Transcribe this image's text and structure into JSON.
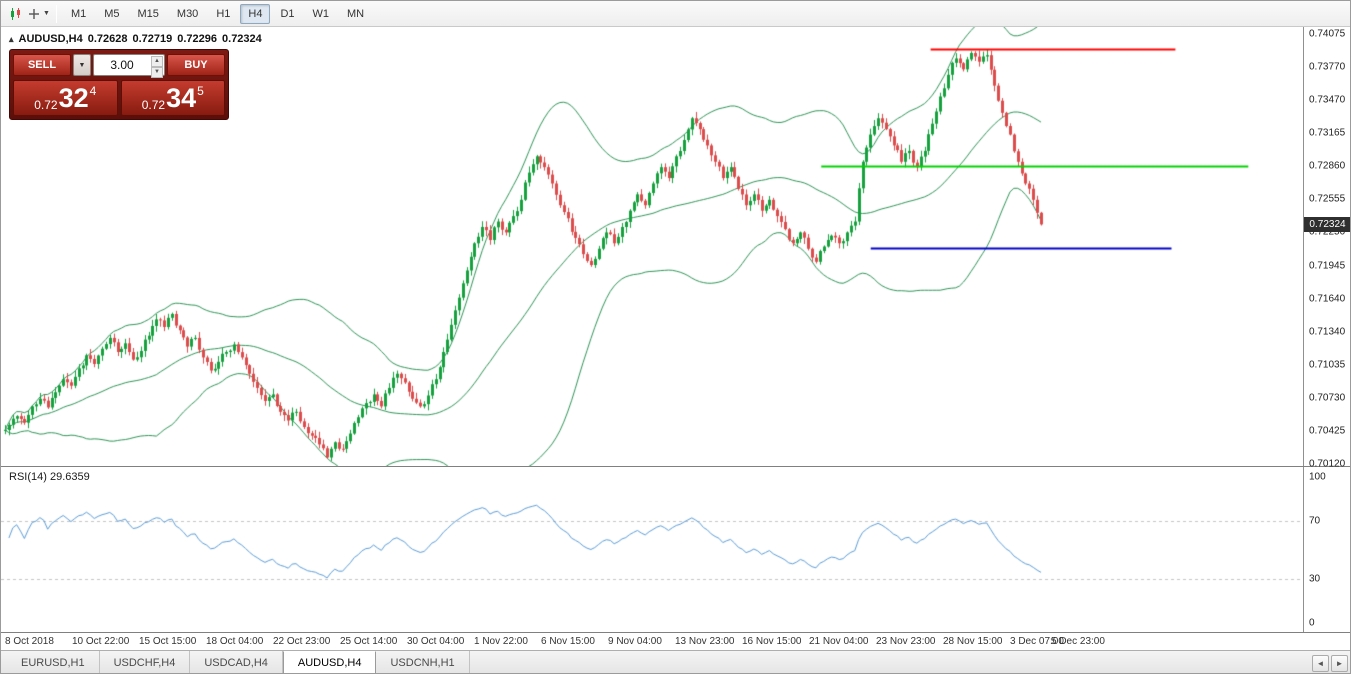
{
  "toolbar": {
    "timeframes": [
      "M1",
      "M5",
      "M15",
      "M30",
      "H1",
      "H4",
      "D1",
      "W1",
      "MN"
    ],
    "active_timeframe": "H4"
  },
  "chart_header": {
    "symbol": "AUDUSD,H4",
    "open": "0.72628",
    "high": "0.72719",
    "low": "0.72296",
    "close": "0.72324"
  },
  "trade_panel": {
    "sell_label": "SELL",
    "buy_label": "BUY",
    "lot_size": "3.00",
    "sell_price": {
      "big_figure": "0.72",
      "pips": "32",
      "pipette": "4"
    },
    "buy_price": {
      "big_figure": "0.72",
      "pips": "34",
      "pipette": "5"
    }
  },
  "chart_data": {
    "type": "candlestick",
    "symbol": "AUDUSD",
    "timeframe": "H4",
    "price_min": 0.7012,
    "price_max": 0.74075,
    "current_price": "0.72324",
    "y_ticks": [
      "0.74075",
      "0.73770",
      "0.73470",
      "0.73165",
      "0.72860",
      "0.72555",
      "0.72250",
      "0.71945",
      "0.71640",
      "0.71340",
      "0.71035",
      "0.70730",
      "0.70425",
      "0.70120"
    ],
    "x_ticks": [
      "8 Oct 2018",
      "10 Oct 22:00",
      "15 Oct 15:00",
      "18 Oct 04:00",
      "22 Oct 23:00",
      "25 Oct 14:00",
      "30 Oct 04:00",
      "1 Nov 22:00",
      "6 Nov 15:00",
      "9 Nov 04:00",
      "13 Nov 23:00",
      "16 Nov 15:00",
      "21 Nov 04:00",
      "23 Nov 23:00",
      "28 Nov 15:00",
      "3 Dec 07:00",
      "5 Dec 23:00"
    ],
    "closes": [
      0.7048,
      0.7056,
      0.705,
      0.7065,
      0.7072,
      0.7064,
      0.7078,
      0.709,
      0.7084,
      0.71,
      0.7112,
      0.7104,
      0.7118,
      0.7128,
      0.7115,
      0.7123,
      0.7108,
      0.7116,
      0.713,
      0.7145,
      0.7138,
      0.715,
      0.7135,
      0.712,
      0.7128,
      0.711,
      0.7098,
      0.7106,
      0.7115,
      0.7122,
      0.711,
      0.7095,
      0.7082,
      0.707,
      0.7076,
      0.706,
      0.7052,
      0.706,
      0.7046,
      0.7038,
      0.703,
      0.7018,
      0.7032,
      0.7026,
      0.704,
      0.7055,
      0.7068,
      0.7076,
      0.7065,
      0.7082,
      0.7095,
      0.7087,
      0.7072,
      0.7065,
      0.7075,
      0.709,
      0.7115,
      0.714,
      0.7165,
      0.719,
      0.7215,
      0.723,
      0.7218,
      0.7235,
      0.7225,
      0.724,
      0.7255,
      0.728,
      0.7295,
      0.7285,
      0.727,
      0.725,
      0.7238,
      0.722,
      0.7205,
      0.7195,
      0.721,
      0.7225,
      0.7215,
      0.723,
      0.7245,
      0.726,
      0.725,
      0.727,
      0.7285,
      0.7275,
      0.7295,
      0.731,
      0.733,
      0.732,
      0.7305,
      0.729,
      0.7275,
      0.7285,
      0.7265,
      0.725,
      0.726,
      0.7245,
      0.7255,
      0.724,
      0.7228,
      0.7215,
      0.7225,
      0.721,
      0.7198,
      0.7212,
      0.7222,
      0.7215,
      0.7225,
      0.7235,
      0.729,
      0.7315,
      0.733,
      0.732,
      0.7305,
      0.729,
      0.73,
      0.7285,
      0.73,
      0.7325,
      0.735,
      0.737,
      0.7385,
      0.7375,
      0.739,
      0.7382,
      0.7388,
      0.736,
      0.7335,
      0.7315,
      0.729,
      0.727,
      0.7255,
      0.72324
    ],
    "colors": {
      "up": "#16a03e",
      "down": "#dd4b4b"
    },
    "bollinger": {
      "period": 20,
      "deviation": 2,
      "color": "#2e9356"
    },
    "hlines": [
      {
        "price": 0.7394,
        "color": "#ff0000",
        "start": 0.714,
        "end": 0.902
      },
      {
        "price": 0.7286,
        "color": "#00d300",
        "start": 0.63,
        "end": 0.958
      },
      {
        "price": 0.7211,
        "color": "#0000c8",
        "start": 0.668,
        "end": 0.899
      }
    ],
    "rsi": {
      "label": "RSI(14)",
      "value": "29.6359",
      "period": 14,
      "color": "#5b9bd5",
      "levels": [
        30,
        70
      ],
      "range": [
        0,
        100
      ],
      "y_ticks": [
        "100",
        "70",
        "30",
        "0"
      ]
    }
  },
  "tabs": {
    "items": [
      "EURUSD,H1",
      "USDCHF,H4",
      "USDCAD,H4",
      "AUDUSD,H4",
      "USDCNH,H1"
    ],
    "active": "AUDUSD,H4"
  },
  "icons": {
    "collapse_triangle": "▴",
    "dropdown_arrow": "▼",
    "spin_up": "▲",
    "spin_down": "▼",
    "tabs_left": "◄",
    "tabs_right": "►"
  }
}
